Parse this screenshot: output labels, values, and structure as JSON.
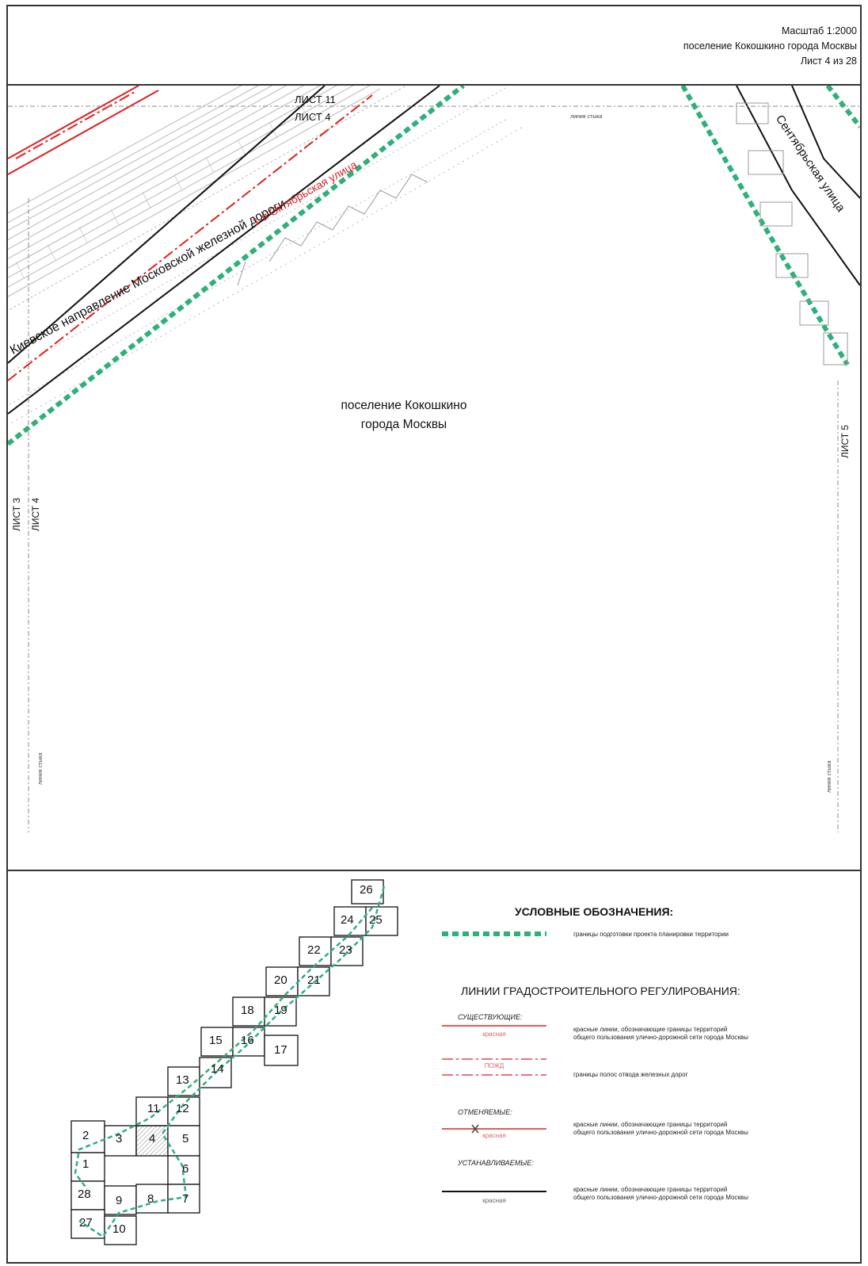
{
  "header": {
    "scale": "Масштаб 1:2000",
    "settlement": "поселение Кокошкино города Москвы",
    "sheet": "Лист 4 из 28"
  },
  "map": {
    "center_label_line1": "поселение Кокошкино",
    "center_label_line2": "города Москвы",
    "railway_label": "Киевское направление Московской железной дороги",
    "street_october": "1-я Октябрьская улица",
    "street_september": "Сентябрьская улица",
    "sheet_11": "ЛИСТ 11",
    "sheet_4_top": "ЛИСТ 4",
    "sheet_3": "ЛИСТ 3",
    "sheet_4_left": "ЛИСТ 4",
    "sheet_5": "ЛИСТ 5",
    "joint_top": "линия стыка",
    "joint_left": "линия стыка",
    "joint_right": "линия стыка"
  },
  "index_map": {
    "cells": [
      "26",
      "24",
      "25",
      "22",
      "23",
      "20",
      "21",
      "18",
      "19",
      "15",
      "16",
      "17",
      "13",
      "14",
      "11",
      "12",
      "2",
      "3",
      "4",
      "5",
      "1",
      "6",
      "28",
      "9",
      "8",
      "7",
      "27",
      "10"
    ],
    "current_sheet": "4"
  },
  "legend": {
    "title": "УСЛОВНЫЕ ОБОЗНАЧЕНИЯ:",
    "boundary_desc": "границы подготовки проекта планировки территории",
    "regulation_title": "ЛИНИИ ГРАДОСТРОИТЕЛЬНОГО РЕГУЛИРОВАНИЯ:",
    "existing_label": "СУЩЕСТВУЮЩИЕ:",
    "red_existing_tag": "красная",
    "red_existing_desc1": "красные линии, обозначающие границы территорий",
    "red_existing_desc2": "общего пользования улично-дорожной сети города Москвы",
    "rail_tag": "ПОЖД",
    "rail_desc": "границы полос отвода железных дорог",
    "cancelled_label": "ОТМЕНЯЕМЫЕ:",
    "red_cancel_tag": "красная",
    "red_cancel_desc1": "красные линии, обозначающие границы территорий",
    "red_cancel_desc2": "общего пользования улично-дорожной сети города Москвы",
    "established_label": "УСТАНАВЛИВАЕМЫЕ:",
    "black_tag": "красная",
    "black_desc1": "красные линии, обозначающие границы территорий",
    "black_desc2": "общего пользования улично-дорожной сети города Москвы"
  },
  "colors": {
    "boundary_green": "#2fb07a",
    "red_line": "#e02020",
    "black_line": "#111111",
    "hatch_gray": "#b8b8b8"
  }
}
